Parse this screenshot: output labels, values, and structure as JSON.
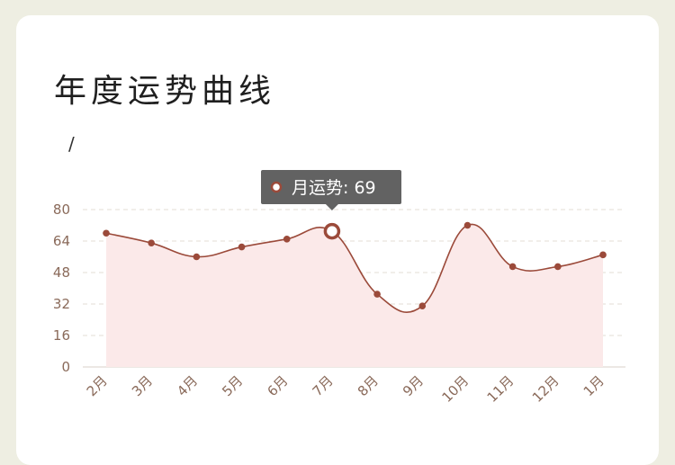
{
  "title": "年度运势曲线",
  "subtitle": "/",
  "colors": {
    "line": "#9b4a3a",
    "area": "#fbe9e9",
    "grid": "#e3dcd6",
    "tooltip_bg": "#555555"
  },
  "chart_data": {
    "type": "area",
    "categories": [
      "2月",
      "3月",
      "4月",
      "5月",
      "6月",
      "7月",
      "8月",
      "9月",
      "10月",
      "11月",
      "12月",
      "1月"
    ],
    "series": [
      {
        "name": "月运势",
        "values": [
          68,
          63,
          56,
          61,
          65,
          69,
          37,
          31,
          72,
          51,
          51,
          57
        ]
      }
    ],
    "ylim": [
      0,
      80
    ],
    "yticks": [
      0,
      16,
      32,
      48,
      64,
      80
    ],
    "grid": true,
    "highlight": {
      "category": "7月",
      "label": "月运势: 69"
    }
  }
}
